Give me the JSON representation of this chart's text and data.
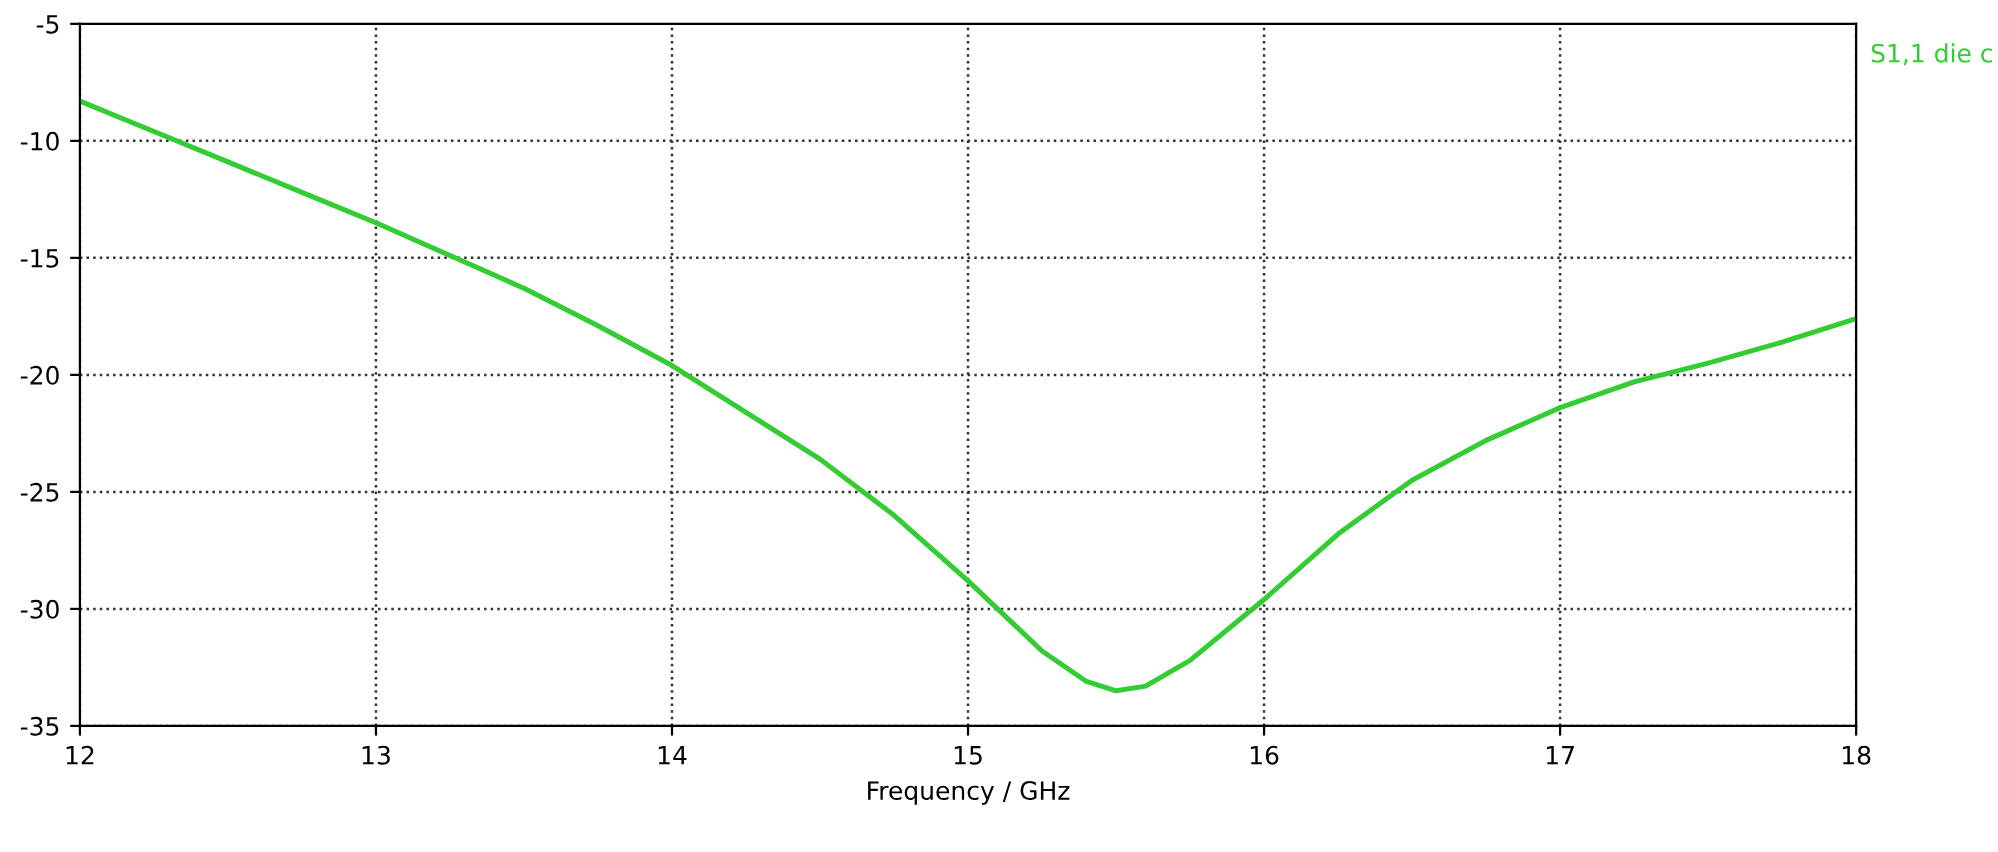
{
  "chart_data": {
    "type": "line",
    "xlabel": "Frequency / GHz",
    "xlim": [
      12,
      18
    ],
    "xticks": [
      12,
      13,
      14,
      15,
      16,
      17,
      18
    ],
    "ylim": [
      -35,
      -5
    ],
    "yticks": [
      -35,
      -30,
      -25,
      -20,
      -15,
      -10,
      -5
    ],
    "grid": true,
    "line_style": "solid",
    "marker": "none",
    "legend": "top right",
    "series": [
      {
        "name": "S1,1 die c",
        "color": "#33cc33",
        "x": [
          12,
          12.25,
          12.5,
          12.75,
          13,
          13.25,
          13.5,
          13.75,
          14,
          14.25,
          14.5,
          14.75,
          15,
          15.25,
          15.4,
          15.5,
          15.6,
          15.75,
          16,
          16.25,
          16.5,
          16.75,
          17,
          17.25,
          17.5,
          17.75,
          18
        ],
        "values": [
          -8.3,
          -9.6,
          -10.9,
          -12.2,
          -13.5,
          -14.9,
          -16.3,
          -17.9,
          -19.6,
          -21.6,
          -23.6,
          -26,
          -28.8,
          -31.8,
          -33.1,
          -33.5,
          -33.3,
          -32.2,
          -29.6,
          -26.8,
          -24.5,
          -22.8,
          -21.4,
          -20.3,
          -19.5,
          -18.6,
          -17.6
        ]
      }
    ]
  }
}
